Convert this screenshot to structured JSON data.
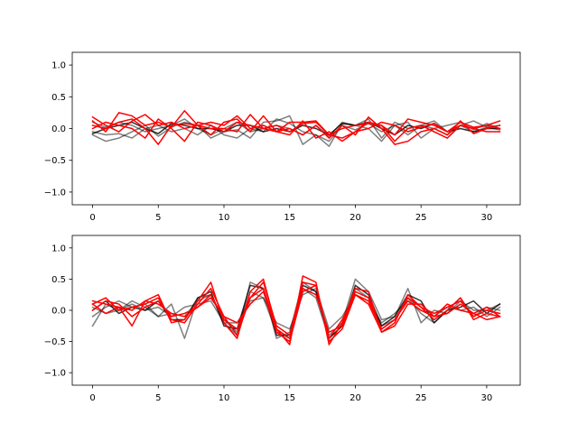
{
  "chart_data": [
    {
      "type": "line",
      "title": "",
      "xlabel": "",
      "ylabel": "",
      "xlim": [
        -1.55,
        32.55
      ],
      "ylim": [
        -1.2,
        1.2
      ],
      "xticks": [
        0,
        5,
        10,
        15,
        20,
        25,
        30
      ],
      "yticks": [
        -1.0,
        -0.5,
        0.0,
        0.5,
        1.0
      ],
      "grid": false,
      "legend": "none",
      "colors": {
        "black_series": "#000000",
        "red_series": "#ff0000"
      },
      "x": [
        0,
        1,
        2,
        3,
        4,
        5,
        6,
        7,
        8,
        9,
        10,
        11,
        12,
        13,
        14,
        15,
        16,
        17,
        18,
        19,
        20,
        21,
        22,
        23,
        24,
        25,
        26,
        27,
        28,
        29,
        30,
        31
      ],
      "series": [
        {
          "color": "#000000",
          "opacity": 0.5,
          "values": [
            -0.1,
            -0.2,
            -0.15,
            -0.05,
            0.05,
            -0.12,
            0.02,
            0.1,
            0.05,
            -0.15,
            -0.05,
            -0.02,
            -0.15,
            0.1,
            0.12,
            0.2,
            -0.25,
            -0.1,
            -0.28,
            0.08,
            0.05,
            0.0,
            -0.2,
            0.05,
            0.1,
            -0.15,
            0.0,
            -0.1,
            0.05,
            0.12,
            0.02,
            -0.02
          ]
        },
        {
          "color": "#000000",
          "opacity": 0.5,
          "values": [
            -0.05,
            -0.1,
            -0.08,
            -0.15,
            0.0,
            0.05,
            -0.05,
            0.0,
            -0.1,
            0.05,
            -0.1,
            -0.15,
            0.0,
            -0.05,
            0.15,
            0.08,
            -0.05,
            -0.1,
            -0.2,
            0.05,
            -0.02,
            0.08,
            -0.05,
            0.05,
            -0.1,
            0.05,
            0.12,
            -0.05,
            0.05,
            -0.05,
            0.02,
            0.05
          ]
        },
        {
          "color": "#000000",
          "opacity": 0.5,
          "values": [
            0.1,
            0.02,
            0.1,
            0.05,
            -0.05,
            0.0,
            0.05,
            0.15,
            0.0,
            -0.1,
            0.0,
            0.1,
            -0.05,
            0.0,
            0.05,
            0.0,
            -0.1,
            0.05,
            -0.12,
            0.1,
            0.05,
            0.15,
            -0.15,
            0.1,
            0.0,
            0.05,
            0.0,
            0.05,
            0.1,
            -0.02,
            0.08,
            0.0
          ]
        },
        {
          "color": "#000000",
          "opacity": 0.8,
          "values": [
            -0.08,
            0.0,
            0.05,
            0.1,
            0.0,
            -0.08,
            0.08,
            0.05,
            0.0,
            0.0,
            -0.05,
            0.05,
            0.05,
            -0.05,
            0.0,
            -0.05,
            0.05,
            0.0,
            -0.1,
            0.08,
            0.05,
            0.1,
            0.0,
            -0.1,
            0.05,
            0.0,
            0.08,
            -0.05,
            0.0,
            -0.05,
            0.0,
            0.0
          ]
        },
        {
          "color": "#ff0000",
          "opacity": 1.0,
          "values": [
            0.18,
            0.05,
            -0.05,
            0.12,
            0.22,
            0.05,
            0.1,
            0.0,
            0.05,
            0.1,
            0.05,
            0.2,
            0.0,
            0.05,
            -0.05,
            0.1,
            0.1,
            0.12,
            -0.1,
            0.0,
            0.05,
            0.08,
            0.05,
            -0.1,
            0.15,
            0.1,
            0.05,
            -0.05,
            0.1,
            0.02,
            0.05,
            0.12
          ]
        },
        {
          "color": "#ff0000",
          "opacity": 1.0,
          "values": [
            0.05,
            0.0,
            0.1,
            0.15,
            0.0,
            -0.25,
            0.05,
            0.08,
            0.05,
            -0.1,
            0.1,
            0.15,
            -0.05,
            0.2,
            -0.05,
            0.0,
            -0.1,
            0.05,
            -0.15,
            0.05,
            -0.1,
            0.18,
            0.0,
            -0.25,
            -0.2,
            -0.05,
            0.0,
            -0.1,
            0.12,
            -0.08,
            0.0,
            0.05
          ]
        },
        {
          "color": "#ff0000",
          "opacity": 1.0,
          "values": [
            0.0,
            0.1,
            0.05,
            0.0,
            -0.15,
            0.15,
            0.0,
            -0.2,
            0.1,
            0.05,
            -0.05,
            0.1,
            0.05,
            0.0,
            -0.05,
            -0.1,
            0.12,
            -0.15,
            -0.05,
            -0.2,
            -0.05,
            0.1,
            0.05,
            -0.2,
            0.0,
            0.05,
            -0.05,
            -0.15,
            0.05,
            0.0,
            -0.05,
            -0.05
          ]
        },
        {
          "color": "#ff0000",
          "opacity": 1.0,
          "values": [
            0.12,
            -0.05,
            0.25,
            0.2,
            0.05,
            0.1,
            0.02,
            0.28,
            0.05,
            0.0,
            0.0,
            -0.05,
            0.22,
            0.0,
            0.05,
            -0.05,
            0.08,
            0.1,
            -0.1,
            -0.15,
            -0.05,
            0.0,
            0.1,
            0.05,
            -0.05,
            0.02,
            0.08,
            -0.05,
            0.05,
            0.0,
            0.05,
            0.0
          ]
        }
      ]
    },
    {
      "type": "line",
      "title": "",
      "xlabel": "",
      "ylabel": "",
      "xlim": [
        -1.55,
        32.55
      ],
      "ylim": [
        -1.2,
        1.2
      ],
      "xticks": [
        0,
        5,
        10,
        15,
        20,
        25,
        30
      ],
      "yticks": [
        -1.0,
        -0.5,
        0.0,
        0.5,
        1.0
      ],
      "grid": false,
      "legend": "none",
      "colors": {
        "black_series": "#000000",
        "red_series": "#ff0000"
      },
      "x": [
        0,
        1,
        2,
        3,
        4,
        5,
        6,
        7,
        8,
        9,
        10,
        11,
        12,
        13,
        14,
        15,
        16,
        17,
        18,
        19,
        20,
        21,
        22,
        23,
        24,
        25,
        26,
        27,
        28,
        29,
        30,
        31
      ],
      "series": [
        {
          "color": "#000000",
          "opacity": 0.5,
          "values": [
            -0.25,
            0.1,
            0.0,
            0.15,
            0.05,
            -0.1,
            0.1,
            -0.45,
            0.2,
            0.25,
            -0.2,
            -0.4,
            0.45,
            0.35,
            -0.45,
            -0.35,
            0.45,
            0.3,
            -0.4,
            -0.2,
            0.5,
            0.3,
            -0.15,
            -0.1,
            0.35,
            -0.2,
            0.0,
            -0.05,
            0.15,
            0.0,
            0.0,
            0.1
          ]
        },
        {
          "color": "#000000",
          "opacity": 0.5,
          "values": [
            -0.1,
            0.05,
            0.15,
            0.05,
            0.1,
            -0.1,
            -0.05,
            -0.1,
            0.15,
            0.25,
            -0.15,
            -0.35,
            0.3,
            0.2,
            -0.35,
            -0.45,
            0.35,
            0.2,
            -0.45,
            -0.25,
            0.35,
            0.2,
            -0.25,
            -0.15,
            0.2,
            -0.05,
            -0.2,
            0.0,
            0.2,
            -0.1,
            0.05,
            0.0
          ]
        },
        {
          "color": "#000000",
          "opacity": 0.5,
          "values": [
            0.05,
            -0.05,
            0.0,
            0.1,
            0.0,
            0.05,
            -0.1,
            0.05,
            0.1,
            0.15,
            -0.2,
            -0.2,
            0.15,
            0.2,
            -0.2,
            -0.3,
            0.25,
            0.35,
            -0.3,
            -0.1,
            0.25,
            0.15,
            -0.2,
            -0.05,
            0.15,
            0.0,
            -0.1,
            0.05,
            0.0,
            0.05,
            -0.1,
            0.05
          ]
        },
        {
          "color": "#000000",
          "opacity": 0.8,
          "values": [
            0.0,
            0.15,
            -0.05,
            0.05,
            0.0,
            0.15,
            -0.15,
            -0.15,
            0.2,
            0.3,
            -0.25,
            -0.3,
            0.4,
            0.35,
            -0.4,
            -0.4,
            0.4,
            0.3,
            -0.45,
            -0.25,
            0.4,
            0.25,
            -0.25,
            -0.1,
            0.25,
            0.15,
            -0.2,
            0.0,
            0.05,
            0.15,
            -0.05,
            0.1
          ]
        },
        {
          "color": "#ff0000",
          "opacity": 1.0,
          "values": [
            0.15,
            0.1,
            0.05,
            -0.25,
            0.15,
            0.25,
            -0.2,
            -0.15,
            0.15,
            0.45,
            -0.2,
            -0.45,
            0.3,
            0.5,
            -0.3,
            -0.55,
            0.55,
            0.45,
            -0.55,
            -0.2,
            0.35,
            0.3,
            -0.35,
            -0.2,
            0.25,
            0.05,
            -0.15,
            0.0,
            0.2,
            -0.15,
            -0.05,
            -0.1
          ]
        },
        {
          "color": "#ff0000",
          "opacity": 1.0,
          "values": [
            0.1,
            0.2,
            0.0,
            0.05,
            0.1,
            0.2,
            -0.15,
            -0.2,
            0.1,
            0.35,
            -0.1,
            -0.4,
            0.2,
            0.45,
            -0.25,
            -0.4,
            0.45,
            0.4,
            -0.5,
            -0.3,
            0.25,
            0.15,
            -0.3,
            -0.15,
            0.15,
            0.0,
            -0.1,
            0.1,
            0.0,
            -0.05,
            -0.15,
            -0.1
          ]
        },
        {
          "color": "#ff0000",
          "opacity": 1.0,
          "values": [
            0.0,
            0.15,
            0.1,
            -0.1,
            0.05,
            0.15,
            -0.1,
            -0.05,
            0.05,
            0.25,
            -0.15,
            -0.3,
            0.2,
            0.35,
            -0.3,
            -0.45,
            0.35,
            0.25,
            -0.35,
            -0.25,
            0.3,
            0.2,
            -0.3,
            -0.15,
            0.2,
            0.05,
            -0.05,
            0.05,
            0.15,
            -0.1,
            0.0,
            -0.05
          ]
        },
        {
          "color": "#ff0000",
          "opacity": 1.0,
          "values": [
            0.1,
            -0.05,
            0.05,
            0.0,
            0.15,
            0.1,
            -0.05,
            -0.1,
            0.05,
            0.2,
            -0.1,
            -0.2,
            0.1,
            0.3,
            -0.35,
            -0.5,
            0.3,
            0.4,
            -0.45,
            -0.15,
            0.25,
            0.1,
            -0.35,
            -0.25,
            0.1,
            0.1,
            -0.1,
            -0.05,
            0.1,
            -0.05,
            0.05,
            -0.1
          ]
        }
      ]
    }
  ]
}
